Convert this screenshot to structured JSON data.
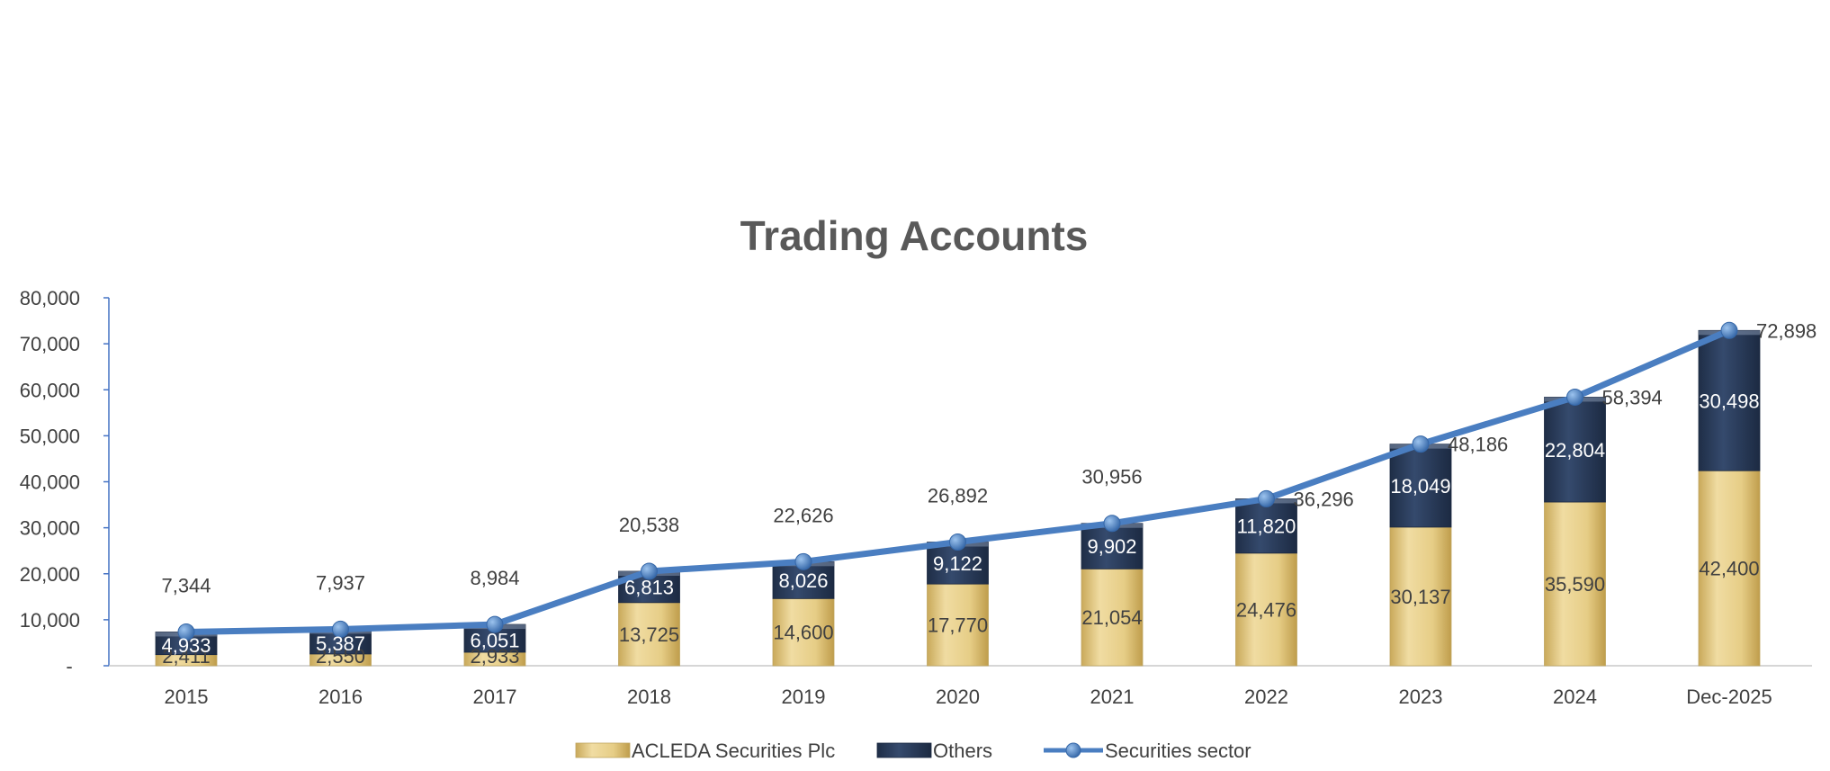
{
  "chart_data": {
    "type": "bar",
    "title": "Trading Accounts",
    "categories": [
      "2015",
      "2016",
      "2017",
      "2018",
      "2019",
      "2020",
      "2021",
      "2022",
      "2023",
      "2024",
      "Dec-2025"
    ],
    "series": [
      {
        "name": "ACLEDA Securities Plc",
        "type": "stacked-bar",
        "color": "#E3C77E",
        "values": [
          2411,
          2550,
          2933,
          13725,
          14600,
          17770,
          21054,
          24476,
          30137,
          35590,
          42400
        ]
      },
      {
        "name": "Others",
        "type": "stacked-bar",
        "color": "#2B3D5B",
        "values": [
          4933,
          5387,
          6051,
          6813,
          8026,
          9122,
          9902,
          11820,
          18049,
          22804,
          30498
        ]
      },
      {
        "name": "Securities sector",
        "type": "line",
        "color": "#4A7EC1",
        "values": [
          7344,
          7937,
          8984,
          20538,
          22626,
          26892,
          30956,
          36296,
          48186,
          58394,
          72898
        ]
      }
    ],
    "ylim": [
      0,
      80000
    ],
    "yticks": [
      0,
      10000,
      20000,
      30000,
      40000,
      50000,
      60000,
      70000,
      80000
    ],
    "ytick_labels": [
      "-",
      "10,000",
      "20,000",
      "30,000",
      "40,000",
      "50,000",
      "60,000",
      "70,000",
      "80,000"
    ],
    "xlabel": "",
    "ylabel": "",
    "grid": false,
    "legend_position": "bottom"
  }
}
